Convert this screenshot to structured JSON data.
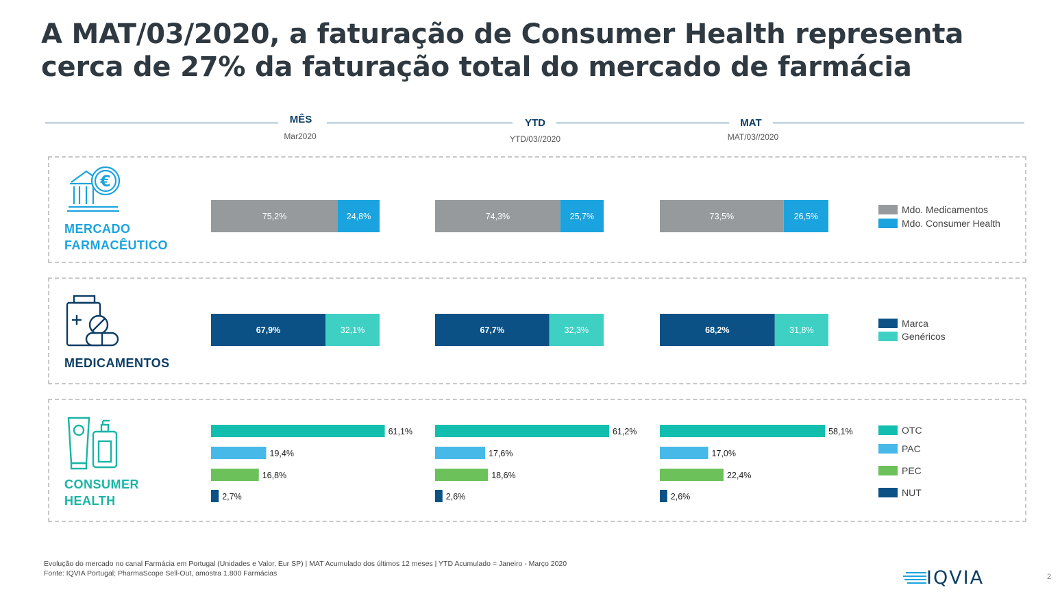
{
  "title": {
    "line1": "A MAT/03/2020, a faturação de Consumer Health representa",
    "line2": "cerca de 27% da faturação total do mercado de farmácia"
  },
  "periods": [
    {
      "label": "MÊS",
      "sub": "Mar2020"
    },
    {
      "label": "YTD",
      "sub": "YTD/03//2020"
    },
    {
      "label": "MAT",
      "sub": "MAT/03//2020"
    }
  ],
  "sections": {
    "mercado": {
      "label_line1": "MERCADO",
      "label_line2": "FARMACÊUTICO",
      "color": "#1aa3de",
      "icon": "bank-euro-icon"
    },
    "medicamentos": {
      "label_line1": "MEDICAMENTOS",
      "color": "#0b3d63",
      "icon": "medicine-bottle-pills-icon"
    },
    "consumer": {
      "label_line1": "CONSUMER",
      "label_line2": "HEALTH",
      "color": "#19b5a5",
      "icon": "cosmetic-bottles-icon"
    }
  },
  "legends": {
    "mercado": [
      {
        "label": "Mdo. Medicamentos",
        "color": "#969a9d"
      },
      {
        "label": "Mdo. Consumer Health",
        "color": "#1aa3de"
      }
    ],
    "medicamentos": [
      {
        "label": "Marca",
        "color": "#0b5185"
      },
      {
        "label": "Genéricos",
        "color": "#3fd0c4"
      }
    ],
    "consumer": [
      {
        "label": "OTC",
        "color": "#12bfae"
      },
      {
        "label": "PAC",
        "color": "#47b9e8"
      },
      {
        "label": "PEC",
        "color": "#6cc15a"
      },
      {
        "label": "NUT",
        "color": "#0b5185"
      }
    ]
  },
  "chart_data": [
    {
      "type": "bar",
      "stacked": true,
      "orientation": "horizontal",
      "categories": [
        "MÊS",
        "YTD",
        "MAT"
      ],
      "series": [
        {
          "name": "Mdo. Medicamentos",
          "values": [
            75.2,
            74.3,
            73.5
          ],
          "labels": [
            "75,2%",
            "74,3%",
            "73,5%"
          ],
          "color": "#969a9d"
        },
        {
          "name": "Mdo. Consumer Health",
          "values": [
            24.8,
            25.7,
            26.5
          ],
          "labels": [
            "24,8%",
            "25,7%",
            "26,5%"
          ],
          "color": "#1aa3de"
        }
      ],
      "xlim": [
        0,
        100
      ]
    },
    {
      "type": "bar",
      "stacked": true,
      "orientation": "horizontal",
      "categories": [
        "MÊS",
        "YTD",
        "MAT"
      ],
      "series": [
        {
          "name": "Marca",
          "values": [
            67.9,
            67.7,
            68.2
          ],
          "labels": [
            "67,9%",
            "67,7%",
            "68,2%"
          ],
          "color": "#0b5185"
        },
        {
          "name": "Genéricos",
          "values": [
            32.1,
            32.3,
            31.8
          ],
          "labels": [
            "32,1%",
            "32,3%",
            "31,8%"
          ],
          "color": "#3fd0c4"
        }
      ],
      "xlim": [
        0,
        100
      ]
    },
    {
      "type": "bar",
      "orientation": "horizontal",
      "categories": [
        "MÊS",
        "YTD",
        "MAT"
      ],
      "series": [
        {
          "name": "OTC",
          "values": [
            61.1,
            61.2,
            58.1
          ],
          "labels": [
            "61,1%",
            "61,2%",
            "58,1%"
          ],
          "color": "#12bfae"
        },
        {
          "name": "PAC",
          "values": [
            19.4,
            17.6,
            17.0
          ],
          "labels": [
            "19,4%",
            "17,6%",
            "17,0%"
          ],
          "color": "#47b9e8"
        },
        {
          "name": "PEC",
          "values": [
            16.8,
            18.6,
            22.4
          ],
          "labels": [
            "16,8%",
            "18,6%",
            "22,4%"
          ],
          "color": "#6cc15a"
        },
        {
          "name": "NUT",
          "values": [
            2.7,
            2.6,
            2.6
          ],
          "labels": [
            "2,7%",
            "2,6%",
            "2,6%"
          ],
          "color": "#0b5185"
        }
      ],
      "xlim": [
        0,
        100
      ]
    }
  ],
  "footnote": {
    "line1": "Evolução do mercado no canal Farmácia em Portugal (Unidades e Valor, Eur SP) | MAT Acumulado  dos últimos 12 meses | YTD Acumulado = Janeiro - Março 2020",
    "line2": "Fonte: IQVIA Portugal; PharmaScope Sell-Out, amostra 1.800 Farmácias"
  },
  "logo": {
    "text": "IQVIA"
  },
  "page_number": "2"
}
